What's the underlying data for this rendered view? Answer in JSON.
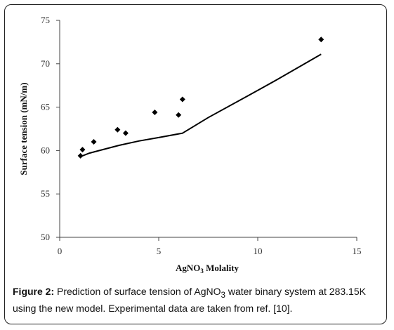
{
  "chart_data": {
    "type": "scatter",
    "xlabel": "AgNO",
    "xlabel_subscript": "3",
    "xlabel_suffix": " Molality",
    "ylabel": "Surface tension (mN/m)",
    "xlim": [
      0,
      15
    ],
    "ylim": [
      50,
      75
    ],
    "xticks": [
      "0",
      "5",
      "10",
      "15"
    ],
    "yticks": [
      "50",
      "55",
      "60",
      "65",
      "70",
      "75"
    ],
    "grid": false,
    "legend": "none",
    "marker_color": "#000000",
    "series": [
      {
        "kind": "points",
        "marker": "diamond",
        "x": [
          1.05,
          1.15,
          1.72,
          2.92,
          3.33,
          4.8,
          6.0,
          6.2,
          13.2
        ],
        "y": [
          59.4,
          60.1,
          61.0,
          62.4,
          62.0,
          64.4,
          64.1,
          65.9,
          72.8
        ]
      },
      {
        "kind": "line",
        "x": [
          1.05,
          1.5,
          2.0,
          3.0,
          4.0,
          5.0,
          6.2,
          7.5,
          9.5,
          11.0,
          13.2
        ],
        "y": [
          59.3,
          59.7,
          60.0,
          60.6,
          61.1,
          61.5,
          62.0,
          63.8,
          66.3,
          68.2,
          71.1
        ]
      }
    ]
  },
  "caption": {
    "label": "Figure 2:",
    "text_part1": " Prediction of surface tension of AgNO",
    "text_sub": "3",
    "text_part2": " water binary system at 283.15K using the new model. Experimental data are taken from ref. [10]."
  }
}
